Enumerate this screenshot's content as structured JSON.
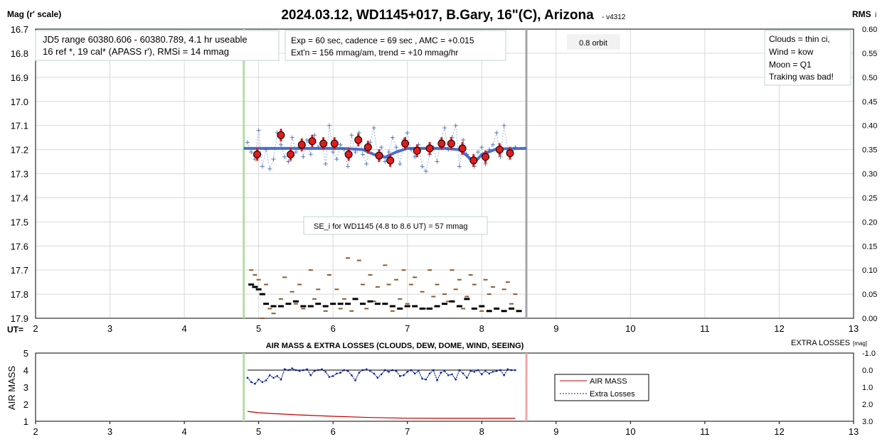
{
  "header": {
    "left_label": "Mag (r' scale)",
    "title": "2024.03.12, WD1145+017, B.Gary, 16\"(C), Arizona",
    "version": "- v4312",
    "right_label": "RMS",
    "right_label_sub": "i"
  },
  "boxes": {
    "jd_line1": "JD5 range 60380.606 - 60380.789, 4.1 hr useable",
    "jd_line2": "16 ref *, 19 cal*  (APASS r'), RMSi = 14 mmag",
    "exp_line1": "Exp = 60 sec, cadence = 69 sec , AMC = +0.015",
    "exp_line2": "Ext'n = 156 mmag/am, trend = +10 mmag/hr",
    "orbit": "0.8 orbit",
    "clouds": "Clouds = thin ci,",
    "wind": "Wind    =  kow",
    "moon": "Moon    =  Q1",
    "tracking": "Traking was bad!",
    "se": "SE_i for WD1145 (4.8 to 8.6 UT) = 57 mmag"
  },
  "lower": {
    "title": "AIR MASS & EXTRA LOSSES (CLOUDS, DEW, DOME, WIND, SEEING)",
    "right_title": "EXTRA LOSSES",
    "right_title_unit": "[mag]",
    "ylabel": "AIR MASS",
    "legend_airmass": "AIR MASS",
    "legend_extra": "Extra Losses"
  },
  "colors": {
    "model": "#3a5fc8",
    "points_plus": "#5a7dc0",
    "binned": "#e11b1b",
    "rms_black": "#000000",
    "rms_brown": "#8b5a2b",
    "green_line": "#b5dca0",
    "gray_line": "#a6a6a6",
    "pink_line": "#f4a5a5",
    "airmass": "#c00000",
    "extra": "#0a1f9a"
  },
  "chart_data": [
    {
      "type": "scatter",
      "title": "2024.03.12, WD1145+017, B.Gary, 16\"(C), Arizona",
      "xlabel": "UT=",
      "ylabel": "Mag (r' scale)",
      "ylabel_right": "RMS i",
      "xlim": [
        2,
        13
      ],
      "ylim": [
        17.9,
        16.7
      ],
      "ylim_right": [
        0.0,
        0.6
      ],
      "x_ticks": [
        2,
        3,
        4,
        5,
        6,
        7,
        8,
        9,
        10,
        11,
        12,
        13
      ],
      "y_ticks": [
        "16.7",
        "16.8",
        "16.9",
        "17.0",
        "17.1",
        "17.2",
        "17.3",
        "17.4",
        "17.5",
        "17.6",
        "17.7",
        "17.8",
        "17.9"
      ],
      "y_ticks_right": [
        "0.60",
        "0.55",
        "0.50",
        "0.45",
        "0.40",
        "0.35",
        "0.30",
        "0.25",
        "0.20",
        "0.15",
        "0.10",
        "0.05",
        "0.00"
      ],
      "grid": true,
      "vertical_markers": [
        4.8,
        8.6
      ],
      "series": [
        {
          "marker": "circle-errorbar",
          "x": [
            4.98,
            5.3,
            5.43,
            5.58,
            5.72,
            5.87,
            6.02,
            6.21,
            6.34,
            6.47,
            6.62,
            6.77,
            6.97,
            7.13,
            7.3,
            7.46,
            7.59,
            7.74,
            7.89,
            8.05,
            8.24,
            8.38
          ],
          "y": [
            17.22,
            17.14,
            17.22,
            17.18,
            17.165,
            17.175,
            17.175,
            17.22,
            17.16,
            17.19,
            17.225,
            17.245,
            17.175,
            17.205,
            17.195,
            17.175,
            17.175,
            17.195,
            17.245,
            17.23,
            17.2,
            17.215
          ]
        },
        {
          "marker": "line-model",
          "x": [
            4.8,
            5.5,
            6.0,
            6.2,
            6.4,
            6.55,
            6.7,
            6.85,
            7.0,
            7.5,
            7.7,
            7.8,
            7.9,
            8.0,
            8.2,
            8.6
          ],
          "y": [
            17.195,
            17.195,
            17.195,
            17.196,
            17.2,
            17.22,
            17.232,
            17.21,
            17.195,
            17.195,
            17.2,
            17.225,
            17.255,
            17.22,
            17.197,
            17.195
          ]
        },
        {
          "marker": "plus",
          "x": [
            4.85,
            4.9,
            4.95,
            5.0,
            5.05,
            5.1,
            5.15,
            5.2,
            5.25,
            5.3,
            5.35,
            5.4,
            5.45,
            5.5,
            5.55,
            5.6,
            5.65,
            5.7,
            5.75,
            5.8,
            5.85,
            5.9,
            5.95,
            6.0,
            6.05,
            6.1,
            6.15,
            6.2,
            6.25,
            6.3,
            6.35,
            6.4,
            6.45,
            6.5,
            6.55,
            6.6,
            6.65,
            6.7,
            6.75,
            6.8,
            6.85,
            6.9,
            6.95,
            7.0,
            7.05,
            7.1,
            7.15,
            7.2,
            7.25,
            7.3,
            7.35,
            7.4,
            7.45,
            7.5,
            7.55,
            7.6,
            7.65,
            7.7,
            7.75,
            7.8,
            7.85,
            7.9,
            7.95,
            8.0,
            8.05,
            8.1,
            8.15,
            8.2,
            8.25,
            8.3,
            8.35,
            8.4,
            8.45
          ],
          "y": [
            17.17,
            17.21,
            17.24,
            17.12,
            17.27,
            17.2,
            17.28,
            17.24,
            17.13,
            17.18,
            17.23,
            17.25,
            17.15,
            17.21,
            17.19,
            17.23,
            17.16,
            17.22,
            17.14,
            17.19,
            17.17,
            17.26,
            17.1,
            17.21,
            17.24,
            17.18,
            17.2,
            17.27,
            17.14,
            17.21,
            17.13,
            17.22,
            17.26,
            17.17,
            17.11,
            17.23,
            17.19,
            17.25,
            17.21,
            17.15,
            17.19,
            17.26,
            17.16,
            17.13,
            17.2,
            17.23,
            17.18,
            17.27,
            17.29,
            17.22,
            17.19,
            17.25,
            17.16,
            17.11,
            17.2,
            17.15,
            17.1,
            17.27,
            17.16,
            17.22,
            17.24,
            17.27,
            17.21,
            17.19,
            17.26,
            17.2,
            17.18,
            17.13,
            17.23,
            17.1,
            17.2,
            17.22,
            17.19
          ]
        }
      ],
      "rms_black": {
        "x": [
          4.9,
          4.95,
          5.0,
          5.05,
          5.1,
          5.2,
          5.3,
          5.4,
          5.5,
          5.6,
          5.7,
          5.8,
          5.9,
          6.0,
          6.1,
          6.2,
          6.3,
          6.4,
          6.5,
          6.6,
          6.7,
          6.8,
          6.9,
          7.0,
          7.1,
          7.2,
          7.3,
          7.4,
          7.5,
          7.6,
          7.7,
          7.8,
          7.9,
          8.0,
          8.1,
          8.2,
          8.3,
          8.4,
          8.5
        ],
        "y": [
          0.07,
          0.065,
          0.06,
          0.05,
          0.03,
          0.025,
          0.025,
          0.03,
          0.035,
          0.025,
          0.025,
          0.03,
          0.025,
          0.03,
          0.03,
          0.03,
          0.04,
          0.03,
          0.035,
          0.03,
          0.03,
          0.025,
          0.02,
          0.025,
          0.025,
          0.02,
          0.02,
          0.025,
          0.03,
          0.035,
          0.025,
          0.04,
          0.02,
          0.025,
          0.015,
          0.02,
          0.015,
          0.02,
          0.015
        ]
      },
      "rms_brown": {
        "x": [
          4.9,
          4.95,
          5.0,
          5.05,
          5.1,
          5.15,
          5.2,
          5.3,
          5.35,
          5.45,
          5.5,
          5.55,
          5.6,
          5.7,
          5.75,
          5.8,
          5.9,
          5.95,
          6.05,
          6.1,
          6.15,
          6.2,
          6.25,
          6.35,
          6.4,
          6.45,
          6.5,
          6.55,
          6.6,
          6.7,
          6.75,
          6.8,
          6.85,
          6.9,
          6.95,
          7.0,
          7.05,
          7.1,
          7.2,
          7.25,
          7.3,
          7.35,
          7.4,
          7.5,
          7.55,
          7.6,
          7.65,
          7.7,
          7.75,
          7.8,
          7.85,
          7.9,
          8.0,
          8.05,
          8.1,
          8.15,
          8.2,
          8.3,
          8.35,
          8.4,
          8.45
        ],
        "y": [
          0.1,
          0.09,
          0.08,
          0.0,
          0.07,
          0.02,
          0.01,
          0.04,
          0.085,
          0.055,
          0.03,
          0.07,
          0.02,
          0.1,
          0.04,
          0.06,
          0.015,
          0.09,
          0.06,
          0.02,
          0.04,
          0.125,
          0.015,
          0.12,
          0.07,
          0.02,
          0.09,
          0.035,
          0.065,
          0.11,
          0.07,
          0.015,
          0.08,
          0.04,
          0.1,
          0.03,
          0.07,
          0.085,
          0.055,
          0.02,
          0.1,
          0.045,
          0.07,
          0.05,
          0.035,
          0.1,
          0.06,
          0.08,
          0.02,
          0.045,
          0.09,
          0.07,
          0.015,
          0.08,
          0.05,
          0.065,
          0.02,
          0.06,
          0.075,
          0.03,
          0.05
        ]
      }
    },
    {
      "type": "line",
      "title": "AIR MASS & EXTRA LOSSES (CLOUDS, DEW, DOME, WIND, SEEING)",
      "xlim": [
        2,
        13
      ],
      "ylim": [
        1,
        5
      ],
      "ylim_right": [
        3.0,
        -1.0
      ],
      "x_ticks": [
        2,
        3,
        4,
        5,
        6,
        7,
        8,
        9,
        10,
        11,
        12,
        13
      ],
      "y_ticks": [
        1,
        2,
        3,
        4,
        5
      ],
      "y_ticks_right": [
        "3.0",
        "2.0",
        "1.0",
        "0.0",
        "-1.0"
      ],
      "series": [
        {
          "name": "AIR MASS",
          "x": [
            4.85,
            5.0,
            5.5,
            6.0,
            6.5,
            7.0,
            7.5,
            8.0,
            8.45
          ],
          "y": [
            1.58,
            1.5,
            1.38,
            1.29,
            1.22,
            1.18,
            1.17,
            1.17,
            1.17
          ]
        },
        {
          "name": "Extra Losses",
          "x": [
            4.85,
            4.9,
            4.95,
            5.0,
            5.05,
            5.1,
            5.15,
            5.2,
            5.25,
            5.3,
            5.35,
            5.4,
            5.45,
            5.5,
            5.55,
            5.6,
            5.65,
            5.7,
            5.75,
            5.8,
            5.85,
            5.9,
            5.95,
            6.0,
            6.05,
            6.1,
            6.15,
            6.2,
            6.25,
            6.3,
            6.35,
            6.4,
            6.45,
            6.5,
            6.55,
            6.6,
            6.65,
            6.7,
            6.75,
            6.8,
            6.85,
            6.9,
            6.95,
            7.0,
            7.05,
            7.1,
            7.15,
            7.2,
            7.25,
            7.3,
            7.35,
            7.4,
            7.45,
            7.5,
            7.55,
            7.6,
            7.65,
            7.7,
            7.75,
            7.8,
            7.85,
            7.9,
            7.95,
            8.0,
            8.05,
            8.1,
            8.15,
            8.2,
            8.25,
            8.3,
            8.35,
            8.4,
            8.45
          ],
          "y": [
            0.45,
            0.7,
            0.8,
            0.55,
            0.7,
            0.6,
            0.3,
            0.45,
            0.35,
            0.55,
            -0.05,
            0.0,
            -0.1,
            0.0,
            0.05,
            0.0,
            -0.05,
            0.3,
            0.05,
            0.0,
            -0.05,
            0.1,
            0.4,
            0.35,
            0.2,
            0.15,
            0.0,
            0.05,
            0.3,
            0.6,
            0.15,
            0.0,
            -0.05,
            0.05,
            0.2,
            0.45,
            0.25,
            0.0,
            0.1,
            0.0,
            0.05,
            0.35,
            0.3,
            0.1,
            0.0,
            0.2,
            0.05,
            0.5,
            0.55,
            0.2,
            0.0,
            0.6,
            0.15,
            0.05,
            0.3,
            0.25,
            0.55,
            0.0,
            0.2,
            0.45,
            0.05,
            0.1,
            0.0,
            0.25,
            0.05,
            0.2,
            0.1,
            0.05,
            0.0,
            0.3,
            -0.05,
            0.0,
            0.0
          ]
        }
      ]
    }
  ]
}
